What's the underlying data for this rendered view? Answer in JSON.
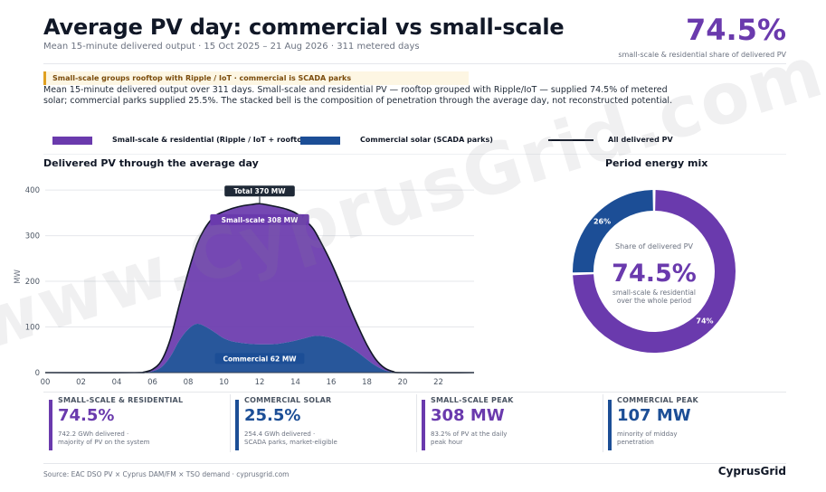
{
  "header": {
    "title": "Average PV day: commercial vs small-scale",
    "subtitle": "Mean 15-minute delivered output  ·  15 Oct 2025 – 21 Aug 2026  ·  311 metered days",
    "kpi_value": "74.5%",
    "kpi_caption": "small-scale & residential share of delivered PV"
  },
  "banner": "Small-scale groups rooftop with Ripple / IoT  ·  commercial is SCADA parks",
  "description": "Mean 15-minute delivered output over 311 days. Small-scale and residential PV — rooftop grouped with Ripple/IoT — supplied 74.5% of metered solar; commercial parks supplied 25.5%. The stacked bell is the composition of penetration through the average day, not reconstructed potential.",
  "legend": {
    "small_label": "Small-scale & residential (Ripple / IoT + rooftop)",
    "commercial_label": "Commercial solar (SCADA parks)",
    "total_label": "All delivered PV"
  },
  "colors": {
    "small": "#6a3aad",
    "commercial": "#1c4e96",
    "total": "#111827"
  },
  "sections": {
    "left_title": "Delivered PV through the average day",
    "right_title": "Period energy mix"
  },
  "chart_data": {
    "type": "area",
    "stacked": true,
    "ylabel": "MW",
    "xlabel": "",
    "ylim": [
      0,
      420
    ],
    "xlim": [
      0,
      24
    ],
    "yticks": [
      0,
      100,
      200,
      300,
      400
    ],
    "xtick_labels": [
      "00",
      "02",
      "04",
      "06",
      "08",
      "10",
      "12",
      "14",
      "16",
      "18",
      "20",
      "22"
    ],
    "x": [
      0,
      5,
      5.5,
      6,
      6.5,
      7,
      7.5,
      8,
      8.5,
      9,
      9.5,
      10,
      10.5,
      11,
      11.5,
      12,
      12.5,
      13,
      13.5,
      14,
      14.5,
      15,
      15.5,
      16,
      16.5,
      17,
      17.5,
      18,
      18.5,
      19,
      19.5,
      20,
      24
    ],
    "series": [
      {
        "name": "Commercial solar (SCADA parks)",
        "values": [
          0,
          0,
          0,
          3,
          12,
          35,
          70,
          95,
          107,
          100,
          88,
          75,
          68,
          65,
          63,
          62,
          62,
          63,
          66,
          70,
          75,
          80,
          80,
          76,
          68,
          57,
          44,
          29,
          15,
          5,
          1,
          0,
          0
        ]
      },
      {
        "name": "Small-scale & residential (Ripple / IoT + rooftop)",
        "values": [
          0,
          0,
          1,
          4,
          14,
          38,
          78,
          125,
          175,
          220,
          255,
          278,
          292,
          300,
          305,
          308,
          305,
          300,
          292,
          280,
          260,
          235,
          200,
          165,
          128,
          90,
          58,
          32,
          14,
          5,
          1,
          0,
          0
        ]
      }
    ],
    "total_series": "All delivered PV",
    "annotations": [
      {
        "text": "Total 370 MW",
        "x": 12,
        "y": 370
      },
      {
        "text": "Small-scale 308 MW",
        "x": 12,
        "y": 335
      },
      {
        "text": "Commercial 62 MW",
        "x": 12,
        "y": 31
      }
    ],
    "grid": true,
    "legend_position": "top"
  },
  "donut": {
    "type": "pie",
    "title": "Period energy mix",
    "center_label": "Share of delivered PV",
    "center_value": "74.5%",
    "center_caption_1": "small-scale & residential",
    "center_caption_2": "over the whole period",
    "slices": [
      {
        "name": "Small-scale & residential",
        "value": 74.5,
        "label": "74%"
      },
      {
        "name": "Commercial solar",
        "value": 25.5,
        "label": "26%"
      }
    ]
  },
  "tiles": [
    {
      "label": "SMALL-SCALE & RESIDENTIAL",
      "value": "74.5%",
      "note": "742.2 GWh delivered ·\nmajority of PV on the system",
      "color": "#6a3aad"
    },
    {
      "label": "COMMERCIAL SOLAR",
      "value": "25.5%",
      "note": "254.4 GWh delivered ·\nSCADA parks, market-eligible",
      "color": "#1c4e96"
    },
    {
      "label": "SMALL-SCALE PEAK",
      "value": "308 MW",
      "note": "83.2% of PV at the daily\npeak hour",
      "color": "#6a3aad"
    },
    {
      "label": "COMMERCIAL PEAK",
      "value": "107 MW",
      "note": "minority of midday\npenetration",
      "color": "#1c4e96"
    }
  ],
  "footer": {
    "source": "Source: EAC DSO PV  ×  Cyprus DAM/FM  ×  TSO demand  ·  cyprusgrid.com",
    "brand": "CyprusGrid"
  },
  "watermark": "www.CyprusGrid.com"
}
